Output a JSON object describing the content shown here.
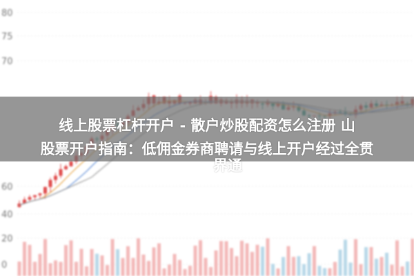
{
  "axis_labels": [
    "80",
    "75",
    "70",
    "60",
    "40",
    "20",
    "0"
  ],
  "title_lines": [
    "线上股票杠杆开户 - 散户炒股配资怎么注册 山",
    "股票开户指南：低佣金券商聘请与线上开户经过全贯",
    "界通"
  ]
}
